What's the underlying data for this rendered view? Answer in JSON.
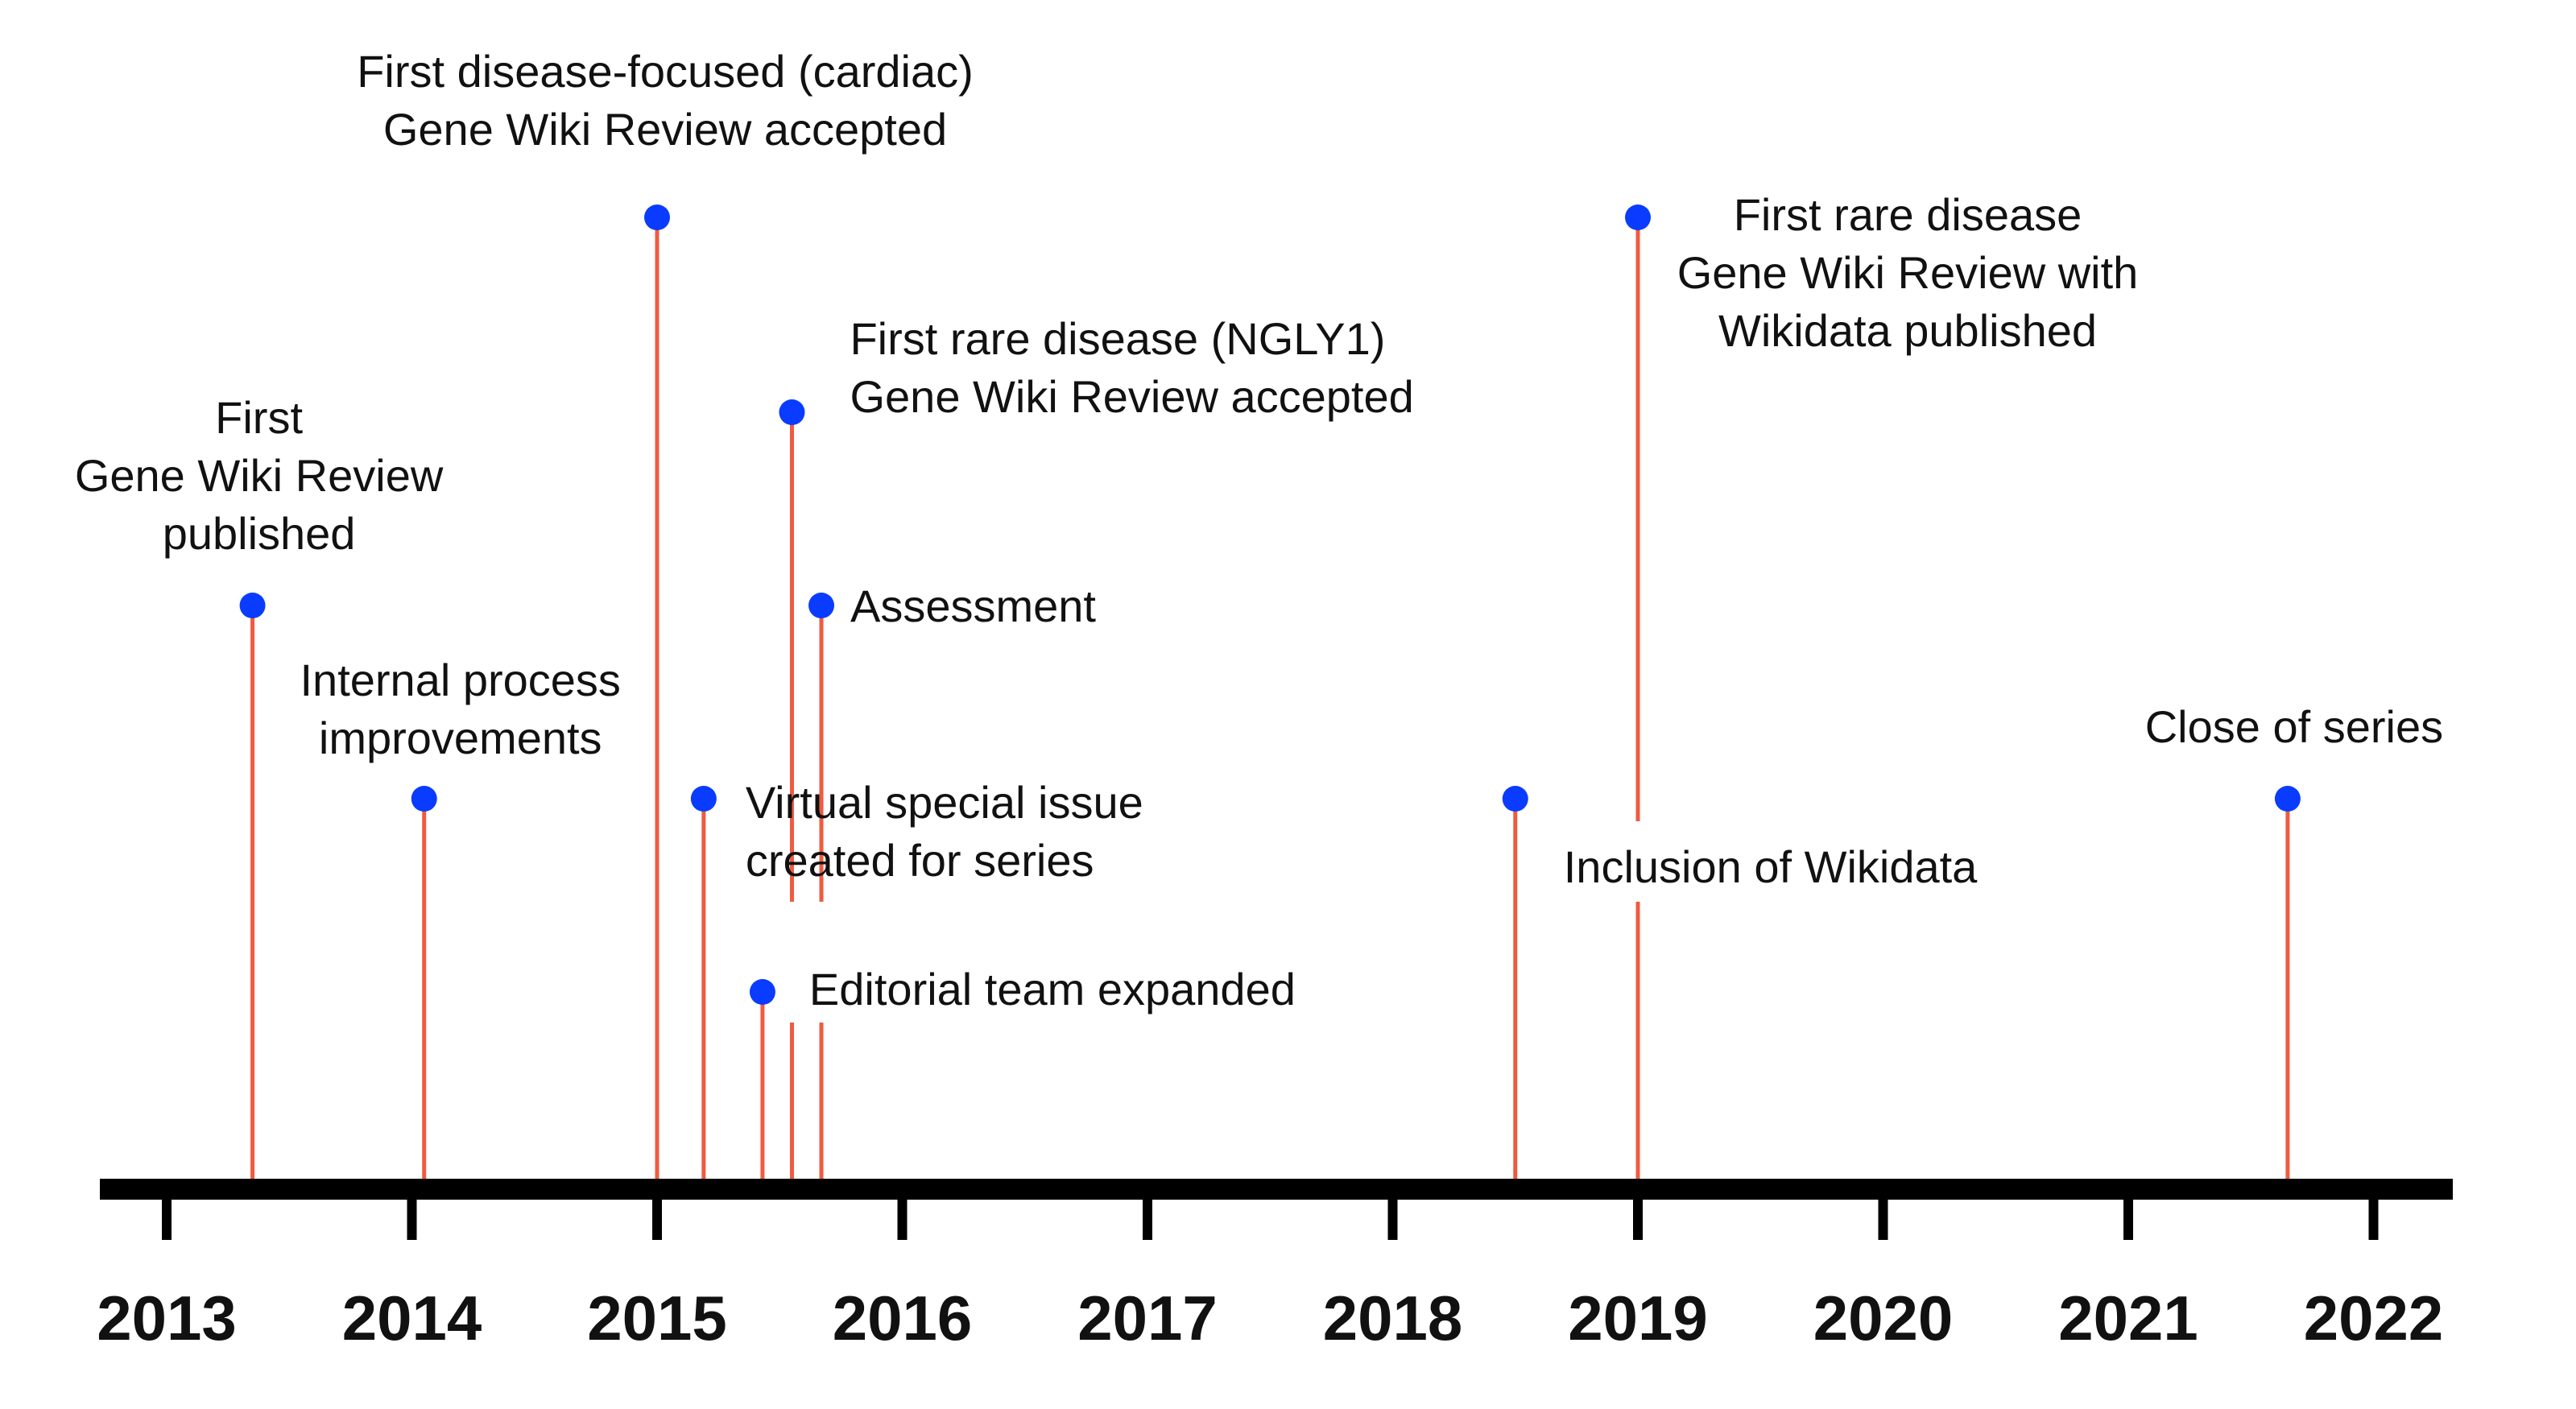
{
  "timeline": {
    "years": [
      "2013",
      "2014",
      "2015",
      "2016",
      "2017",
      "2018",
      "2019",
      "2020",
      "2021",
      "2022"
    ],
    "colors": {
      "stem": "#f05a40",
      "dot": "#0a3cff",
      "axis": "#000000",
      "text": "#111111"
    },
    "events": [
      {
        "id": "first-review",
        "date": 2013.35,
        "level": 2,
        "lines": [
          "First",
          "Gene Wiki Review",
          "published"
        ]
      },
      {
        "id": "internal-process",
        "date": 2014.05,
        "level": 1,
        "lines": [
          "Internal process",
          "improvements"
        ]
      },
      {
        "id": "cardiac-review",
        "date": 2015.0,
        "level": 4,
        "lines": [
          "First disease-focused (cardiac)",
          "Gene Wiki Review accepted"
        ]
      },
      {
        "id": "virtual-issue",
        "date": 2015.19,
        "level": 1,
        "lines": [
          "Virtual special issue",
          "created for series"
        ]
      },
      {
        "id": "editorial-team",
        "date": 2015.43,
        "level": 0,
        "lines": [
          "Editorial team expanded"
        ]
      },
      {
        "id": "ngly1-review",
        "date": 2015.55,
        "level": 3,
        "lines": [
          "First rare disease (NGLY1)",
          "Gene Wiki Review accepted"
        ]
      },
      {
        "id": "assessment",
        "date": 2015.67,
        "level": 2,
        "lines": [
          "Assessment"
        ]
      },
      {
        "id": "wikidata-inclusion",
        "date": 2018.5,
        "level": 1,
        "lines": [
          "Inclusion of Wikidata"
        ]
      },
      {
        "id": "rare-disease-wikidata",
        "date": 2019.0,
        "level": 4,
        "lines": [
          "First rare disease",
          "Gene Wiki Review with",
          "Wikidata published"
        ]
      },
      {
        "id": "close-of-series",
        "date": 2021.65,
        "level": 1,
        "lines": [
          "Close of series"
        ]
      }
    ]
  }
}
